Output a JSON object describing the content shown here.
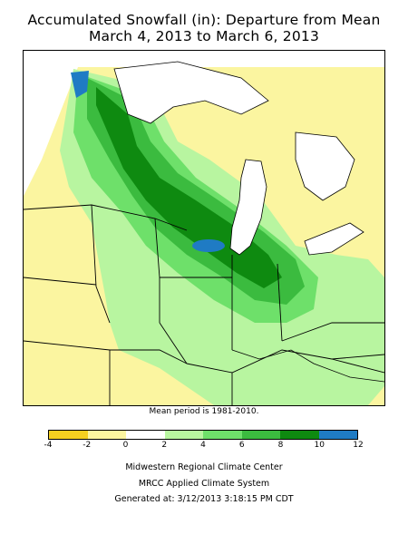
{
  "title_line1": "Accumulated Snowfall (in): Departure from Mean",
  "title_line2": "March 4, 2013 to March 6, 2013",
  "mean_note": "Mean period is 1981-2010.",
  "legend": {
    "ticks": [
      "-4",
      "-2",
      "0",
      "2",
      "4",
      "6",
      "8",
      "10",
      "12"
    ],
    "colors": [
      "#f5d020",
      "#fbf5a0",
      "#ffffff",
      "#b8f5a0",
      "#6ee06a",
      "#3bbb3f",
      "#0e8a10",
      "#1f7bc4",
      "#3fa9e6"
    ]
  },
  "footer": {
    "line1": "Midwestern Regional Climate Center",
    "line2": "MRCC Applied Climate System",
    "line3": "Generated at: 3/12/2013 3:18:15 PM CDT"
  },
  "map_colors": {
    "very_low": "#fbf5a0",
    "low": "#b8f5a0",
    "mid": "#6ee06a",
    "high": "#3bbb3f",
    "very_high": "#0e8a10",
    "extreme": "#1f7bc4",
    "lake": "#ffffff",
    "border": "#000000"
  }
}
